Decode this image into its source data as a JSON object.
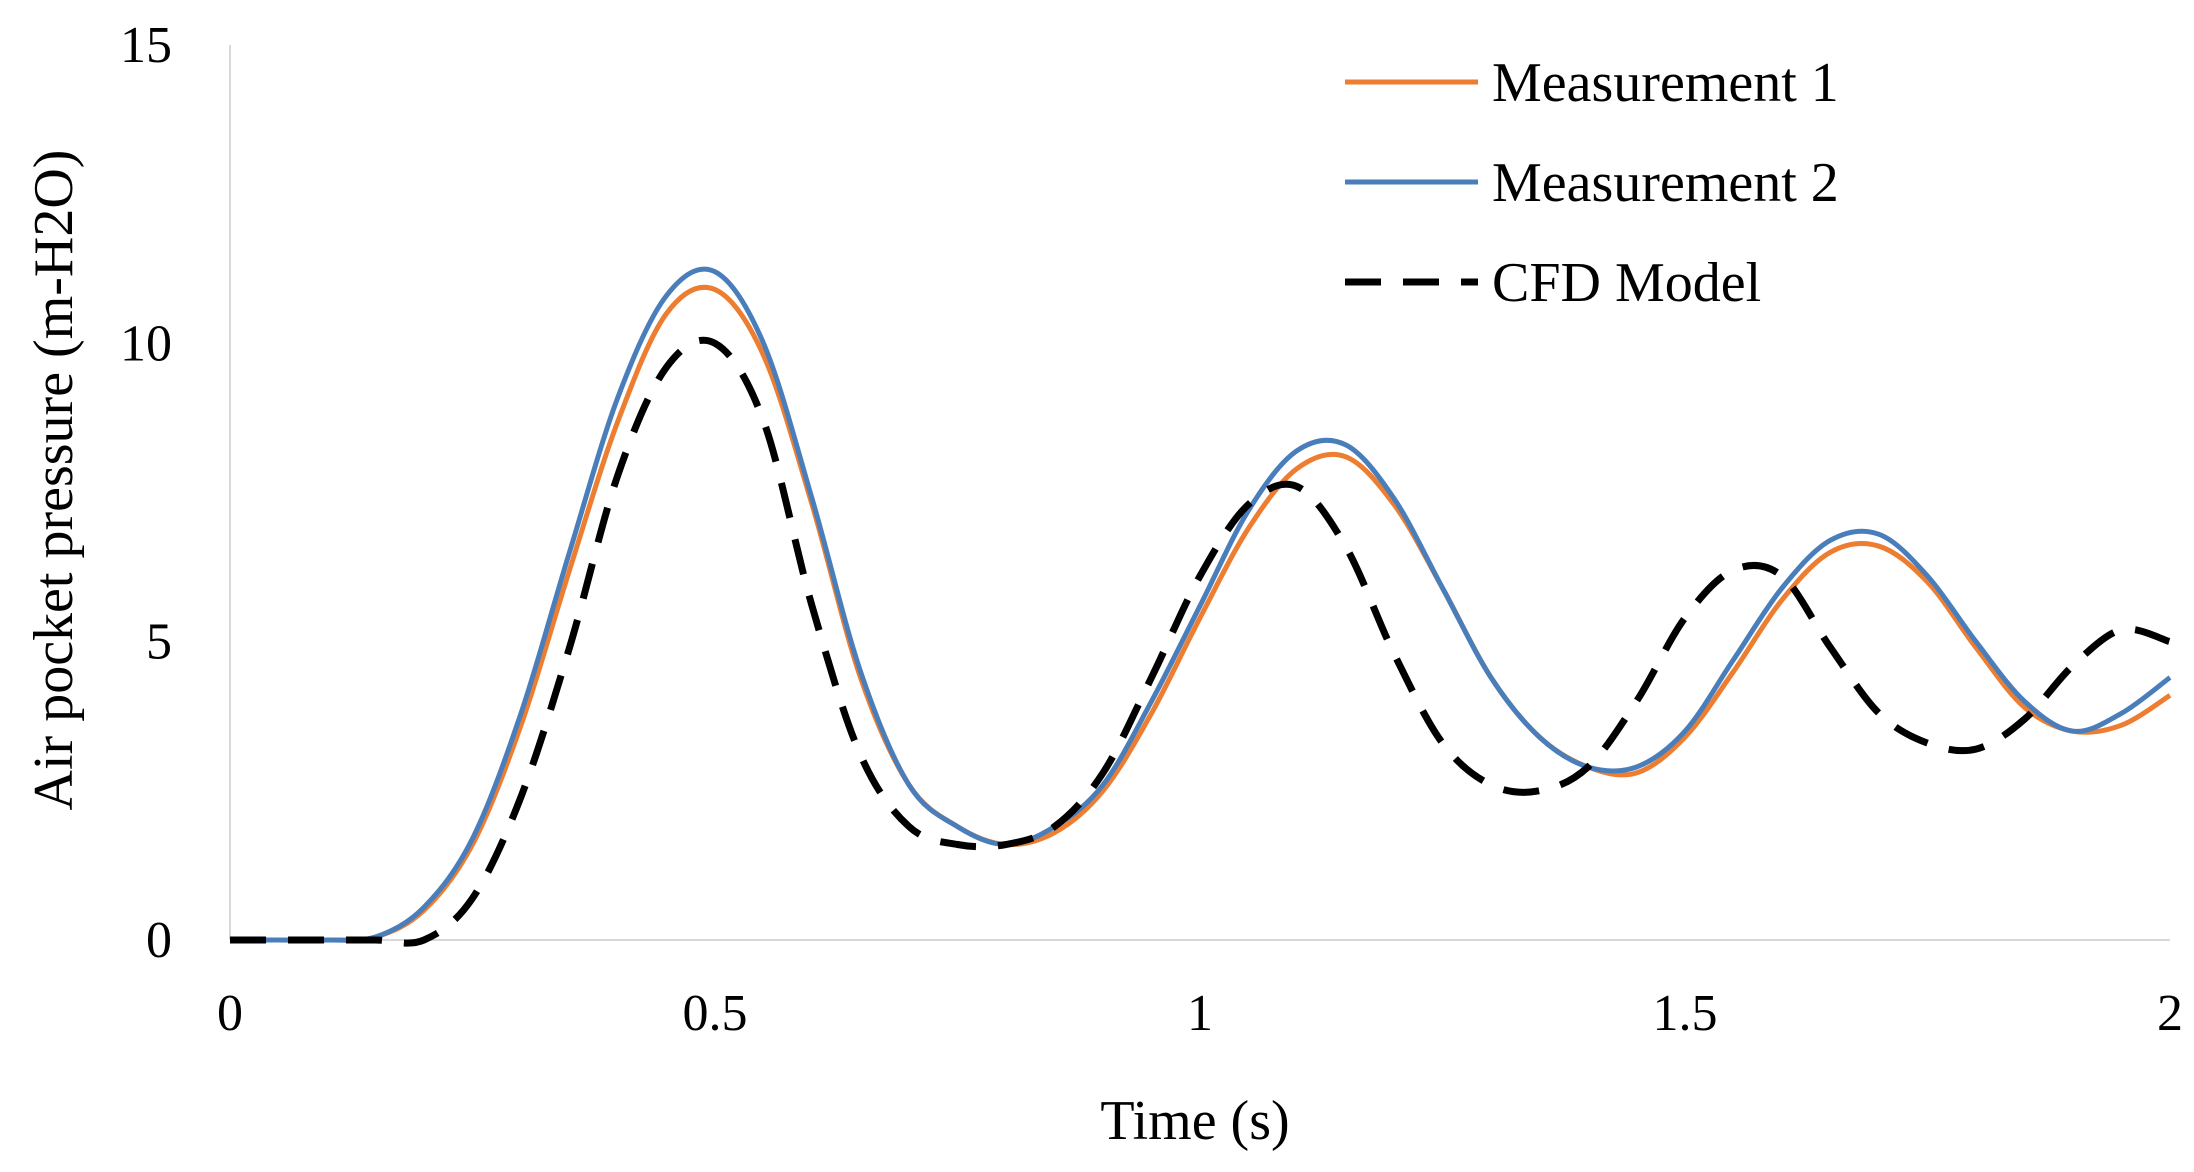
{
  "chart_data": {
    "type": "line",
    "title": "",
    "xlabel": "Time (s)",
    "ylabel": "Air pocket pressure (m-H2O)",
    "xlim": [
      0,
      2
    ],
    "ylim": [
      0,
      15
    ],
    "xticks": [
      0,
      0.5,
      1,
      1.5,
      2
    ],
    "xtick_labels": [
      "0",
      "0.5",
      "1",
      "1.5",
      "2"
    ],
    "yticks": [
      0,
      5,
      10,
      15
    ],
    "ytick_labels": [
      "0",
      "5",
      "10",
      "15"
    ],
    "grid": false,
    "legend_position": "top-right",
    "series": [
      {
        "name": "Measurement 1",
        "color": "#ED7D31",
        "style": "solid",
        "x": [
          0,
          0.05,
          0.1,
          0.15,
          0.2,
          0.25,
          0.3,
          0.35,
          0.4,
          0.45,
          0.5,
          0.55,
          0.6,
          0.65,
          0.7,
          0.75,
          0.8,
          0.85,
          0.9,
          0.95,
          1.0,
          1.05,
          1.1,
          1.15,
          1.2,
          1.25,
          1.3,
          1.35,
          1.4,
          1.45,
          1.5,
          1.55,
          1.6,
          1.65,
          1.7,
          1.75,
          1.8,
          1.85,
          1.9,
          1.95,
          2.0
        ],
        "values": [
          0,
          0,
          0,
          0.05,
          0.5,
          1.6,
          3.6,
          6.2,
          8.7,
          10.5,
          10.9,
          9.8,
          7.3,
          4.4,
          2.6,
          1.9,
          1.6,
          1.8,
          2.5,
          3.8,
          5.4,
          6.9,
          7.9,
          8.1,
          7.3,
          5.9,
          4.4,
          3.4,
          2.9,
          2.8,
          3.4,
          4.5,
          5.7,
          6.5,
          6.6,
          6.0,
          4.9,
          3.9,
          3.5,
          3.6,
          4.1
        ]
      },
      {
        "name": "Measurement 2",
        "color": "#4A7EBB",
        "style": "solid",
        "x": [
          0,
          0.05,
          0.1,
          0.15,
          0.2,
          0.25,
          0.3,
          0.35,
          0.4,
          0.45,
          0.5,
          0.55,
          0.6,
          0.65,
          0.7,
          0.75,
          0.8,
          0.85,
          0.9,
          0.95,
          1.0,
          1.05,
          1.1,
          1.15,
          1.2,
          1.25,
          1.3,
          1.35,
          1.4,
          1.45,
          1.5,
          1.55,
          1.6,
          1.65,
          1.7,
          1.75,
          1.8,
          1.85,
          1.9,
          1.95,
          2.0
        ],
        "values": [
          0,
          0,
          0,
          0.05,
          0.55,
          1.7,
          3.8,
          6.5,
          9.1,
          10.8,
          11.2,
          10.0,
          7.4,
          4.5,
          2.6,
          1.9,
          1.6,
          1.9,
          2.6,
          4.0,
          5.6,
          7.2,
          8.2,
          8.3,
          7.4,
          5.9,
          4.4,
          3.4,
          2.9,
          2.9,
          3.5,
          4.7,
          5.9,
          6.7,
          6.8,
          6.1,
          5.0,
          4.0,
          3.5,
          3.8,
          4.4
        ]
      },
      {
        "name": "CFD Model",
        "color": "#000000",
        "style": "dashed",
        "x": [
          0,
          0.05,
          0.1,
          0.15,
          0.2,
          0.25,
          0.3,
          0.35,
          0.4,
          0.45,
          0.5,
          0.55,
          0.6,
          0.65,
          0.7,
          0.75,
          0.8,
          0.85,
          0.9,
          0.95,
          1.0,
          1.05,
          1.1,
          1.15,
          1.2,
          1.25,
          1.3,
          1.35,
          1.4,
          1.45,
          1.5,
          1.55,
          1.6,
          1.65,
          1.7,
          1.75,
          1.8,
          1.85,
          1.9,
          1.95,
          2.0
        ],
        "values": [
          0,
          0,
          0,
          0,
          0,
          0.7,
          2.4,
          4.9,
          7.8,
          9.6,
          10.0,
          8.7,
          5.6,
          3.1,
          1.9,
          1.6,
          1.6,
          1.9,
          2.8,
          4.4,
          6.1,
          7.3,
          7.6,
          6.6,
          4.8,
          3.3,
          2.6,
          2.5,
          2.9,
          4.0,
          5.4,
          6.2,
          6.1,
          4.9,
          3.8,
          3.3,
          3.2,
          3.7,
          4.6,
          5.2,
          5.0
        ]
      }
    ]
  }
}
